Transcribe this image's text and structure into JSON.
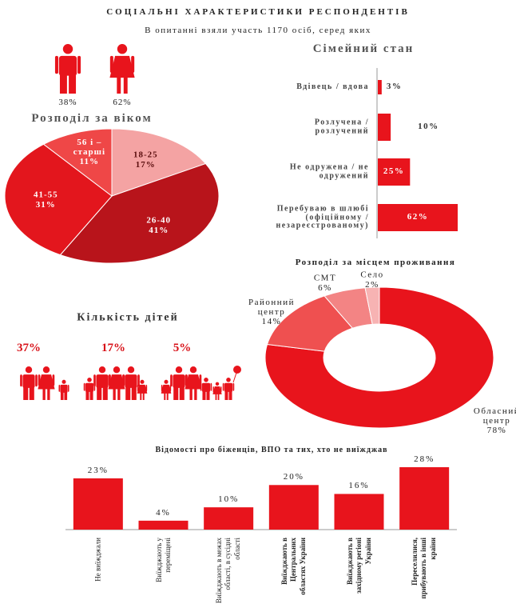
{
  "title": "СОЦІАЛЬНІ ХАРАКТЕРИСТИКИ РЕСПОНДЕНТІВ",
  "subtitle": "В опитанні взяли участь 1170 осіб, серед яких",
  "chart_data": [
    {
      "type": "pictogram",
      "icon": "gender",
      "values": [
        38,
        62
      ],
      "value_labels": [
        "38%",
        "62%"
      ],
      "color": "#e8141c"
    },
    {
      "type": "pie",
      "title": "Розподіл за віком",
      "categories": [
        "18-25",
        "26-40",
        "41-55",
        "56 і – старші"
      ],
      "values": [
        17,
        41,
        31,
        11
      ],
      "value_labels": [
        "17%",
        "41%",
        "31%",
        "11%"
      ],
      "colors": [
        "#f4a3a3",
        "#b8141b",
        "#e3161d",
        "#ef4747"
      ]
    },
    {
      "type": "barh",
      "title": "Сімейний стан",
      "categories": [
        "Вдівець / вдова",
        "Розлучена / розлучений",
        "Не одружена / не одружений",
        "Перебуваю в шлюбі (офіційному / незареєстрованому)"
      ],
      "values": [
        3,
        10,
        25,
        62
      ],
      "value_labels": [
        "3%",
        "10%",
        "25%",
        "62%"
      ],
      "xlim": [
        0,
        62
      ],
      "color": "#e8141c"
    },
    {
      "type": "donut",
      "title": "Розподіл за місцем проживання",
      "categories": [
        "Обласний центр",
        "Районний центр",
        "СМТ",
        "Село"
      ],
      "values": [
        78,
        14,
        6,
        2
      ],
      "value_labels": [
        "78%",
        "14%",
        "6%",
        "2%"
      ],
      "colors": [
        "#e8141c",
        "#ef5050",
        "#f38484",
        "#f7b3b3"
      ]
    },
    {
      "type": "pictogram",
      "icon": "family",
      "title": "Кількість дітей",
      "values": [
        37,
        17,
        5
      ],
      "value_labels": [
        "37%",
        "17%",
        "5%"
      ],
      "color": "#e8141c"
    },
    {
      "type": "bar",
      "title": "Відомості про біженців, ВПО та тих, хто не виїжджав",
      "categories": [
        "Не виїжджали",
        "Виїжджають у переміщені",
        "Виїжджають в межах області, в сусідні області",
        "Виїжджають в Центральних областях України",
        "Виїжджають в західному регіоні України",
        "Переселилися, прибувають в інші країни"
      ],
      "values": [
        23,
        4,
        10,
        20,
        16,
        28
      ],
      "value_labels": [
        "23%",
        "4%",
        "10%",
        "20%",
        "16%",
        "28%"
      ],
      "ylim": [
        0,
        28
      ],
      "color": "#e8141c"
    }
  ]
}
